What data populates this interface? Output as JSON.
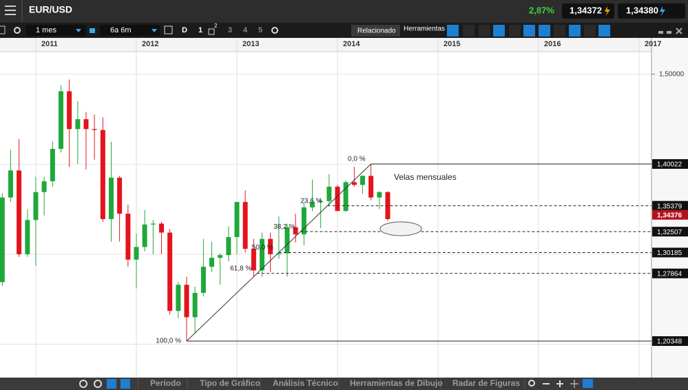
{
  "header": {
    "symbol": "EUR/USD",
    "change": "2,87%",
    "sell": "1,34372",
    "buy": "1,34380"
  },
  "toolbar": {
    "period": "1 mes",
    "range": "6a 6m",
    "day": "D",
    "counts": [
      "1",
      "2",
      "3",
      "4",
      "5"
    ],
    "related": "Relacionado",
    "tools": "Herramientas"
  },
  "footer": {
    "tabs": [
      "Período",
      "Tipo de Gráfico",
      "Análisis Técnico",
      "Herramientas de Dibujo",
      "Radar de Figuras"
    ]
  },
  "chart_data": {
    "type": "candlestick",
    "x": [
      2010.667,
      2010.75,
      2010.833,
      2010.917,
      2011,
      2011.083,
      2011.167,
      2011.25,
      2011.333,
      2011.417,
      2011.5,
      2011.583,
      2011.667,
      2011.75,
      2011.833,
      2011.917,
      2012,
      2012.083,
      2012.167,
      2012.25,
      2012.333,
      2012.417,
      2012.5,
      2012.583,
      2012.667,
      2012.75,
      2012.833,
      2012.917,
      2013,
      2013.083,
      2013.167,
      2013.25,
      2013.333,
      2013.417,
      2013.5,
      2013.583,
      2013.667,
      2013.75,
      2013.833,
      2013.917,
      2014,
      2014.083,
      2014.167,
      2014.25,
      2014.333,
      2014.417,
      2014.5
    ],
    "open": [
      1.269,
      1.363,
      1.393,
      1.3,
      1.338,
      1.369,
      1.381,
      1.417,
      1.481,
      1.439,
      1.45,
      1.439,
      1.438,
      1.339,
      1.385,
      1.345,
      1.294,
      1.308,
      1.333,
      1.334,
      1.324,
      1.237,
      1.266,
      1.23,
      1.257,
      1.286,
      1.296,
      1.299,
      1.319,
      1.358,
      1.306,
      1.282,
      1.317,
      1.3,
      1.301,
      1.33,
      1.322,
      1.352,
      1.358,
      1.359,
      1.375,
      1.348,
      1.38,
      1.377,
      1.387,
      1.363,
      1.369
    ],
    "high": [
      1.368,
      1.416,
      1.428,
      1.35,
      1.386,
      1.386,
      1.425,
      1.488,
      1.494,
      1.47,
      1.458,
      1.455,
      1.452,
      1.425,
      1.387,
      1.355,
      1.323,
      1.349,
      1.338,
      1.336,
      1.328,
      1.269,
      1.275,
      1.264,
      1.317,
      1.314,
      1.301,
      1.331,
      1.358,
      1.371,
      1.317,
      1.324,
      1.324,
      1.342,
      1.334,
      1.345,
      1.357,
      1.383,
      1.362,
      1.389,
      1.377,
      1.382,
      1.397,
      1.388,
      1.40022,
      1.37,
      1.37
    ],
    "low": [
      1.2645,
      1.358,
      1.297,
      1.297,
      1.287,
      1.343,
      1.375,
      1.413,
      1.397,
      1.4,
      1.394,
      1.405,
      1.336,
      1.314,
      1.314,
      1.286,
      1.262,
      1.303,
      1.3,
      1.3,
      1.233,
      1.229,
      1.20348,
      1.213,
      1.253,
      1.28,
      1.266,
      1.292,
      1.3,
      1.302,
      1.275,
      1.275,
      1.28,
      1.295,
      1.275,
      1.313,
      1.31,
      1.348,
      1.329,
      1.354,
      1.348,
      1.347,
      1.375,
      1.367,
      1.36,
      1.35,
      1.337
    ],
    "close": [
      1.363,
      1.393,
      1.3,
      1.338,
      1.369,
      1.381,
      1.417,
      1.481,
      1.439,
      1.45,
      1.439,
      1.438,
      1.339,
      1.385,
      1.345,
      1.294,
      1.308,
      1.333,
      1.334,
      1.324,
      1.237,
      1.266,
      1.23,
      1.257,
      1.286,
      1.296,
      1.299,
      1.319,
      1.358,
      1.306,
      1.282,
      1.317,
      1.3,
      1.301,
      1.33,
      1.322,
      1.352,
      1.358,
      1.359,
      1.375,
      1.348,
      1.38,
      1.377,
      1.387,
      1.363,
      1.369,
      1.339
    ],
    "xlim": [
      2010.644,
      2017.123
    ],
    "xticks": [
      2011,
      2012,
      2013,
      2014,
      2015,
      2016,
      2017
    ],
    "ylim": [
      1.1629,
      1.5403
    ],
    "yticks": [
      {
        "value": 1.5,
        "label": "1,50000"
      },
      {
        "value": 1.4,
        "label": null
      },
      {
        "value": 1.3,
        "label": null
      },
      {
        "value": 1.2,
        "label": null
      }
    ],
    "up_color": "#1fa83a",
    "down_color": "#e3141c",
    "fibonacci": {
      "from_x": 2012.5,
      "to_x": 2014.333,
      "levels": [
        {
          "value": 1.40022,
          "label": "0,0 %",
          "price_label": "1,40022"
        },
        {
          "value": 1.35379,
          "label": "23,6 %",
          "price_label": "1,35379"
        },
        {
          "value": 1.32507,
          "label": "38,2 %",
          "price_label": "1,32507"
        },
        {
          "value": 1.30185,
          "label": "50,0 %",
          "price_label": "1,30185"
        },
        {
          "value": 1.27864,
          "label": "61,8 %",
          "price_label": "1,27864"
        },
        {
          "value": 1.20348,
          "label": "100,0 %",
          "price_label": "1,20348"
        }
      ]
    },
    "last_price": {
      "value": 1.34376,
      "label": "1,34376"
    },
    "annotation": "Velas mensuales"
  }
}
